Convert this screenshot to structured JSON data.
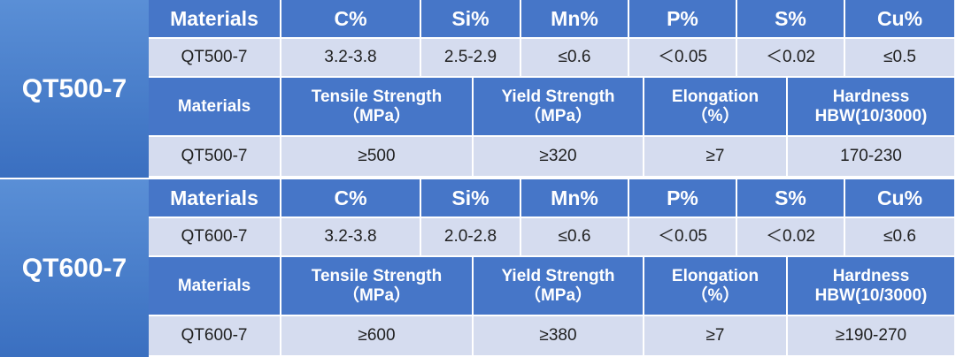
{
  "tables": [
    {
      "grade": "QT500-7",
      "chem_headers": [
        "Materials",
        "C%",
        "Si%",
        "Mn%",
        "P%",
        "S%",
        "Cu%"
      ],
      "chem_values": [
        "QT500-7",
        "3.2-3.8",
        "2.5-2.9",
        "≤0.6",
        "＜0.05",
        "＜0.02",
        "≤0.5"
      ],
      "mech_headers": [
        {
          "line1": "Materials",
          "line2": ""
        },
        {
          "line1": "Tensile Strength",
          "line2": "（MPa）"
        },
        {
          "line1": "Yield Strength",
          "line2": "（MPa）"
        },
        {
          "line1": "Elongation",
          "line2": "（%）"
        },
        {
          "line1": "Hardness",
          "line2": "HBW(10/3000)"
        }
      ],
      "mech_values": [
        "QT500-7",
        "≥500",
        "≥320",
        "≥7",
        "170-230"
      ]
    },
    {
      "grade": "QT600-7",
      "chem_headers": [
        "Materials",
        "C%",
        "Si%",
        "Mn%",
        "P%",
        "S%",
        "Cu%"
      ],
      "chem_values": [
        "QT600-7",
        "3.2-3.8",
        "2.0-2.8",
        "≤0.6",
        "＜0.05",
        "＜0.02",
        "≤0.6"
      ],
      "mech_headers": [
        {
          "line1": "Materials",
          "line2": ""
        },
        {
          "line1": "Tensile Strength",
          "line2": "（MPa）"
        },
        {
          "line1": "Yield Strength",
          "line2": "（MPa）"
        },
        {
          "line1": "Elongation",
          "line2": "（%）"
        },
        {
          "line1": "Hardness",
          "line2": "HBW(10/3000)"
        }
      ],
      "mech_values": [
        "QT600-7",
        "≥600",
        "≥380",
        "≥7",
        "≥190-270"
      ]
    }
  ]
}
